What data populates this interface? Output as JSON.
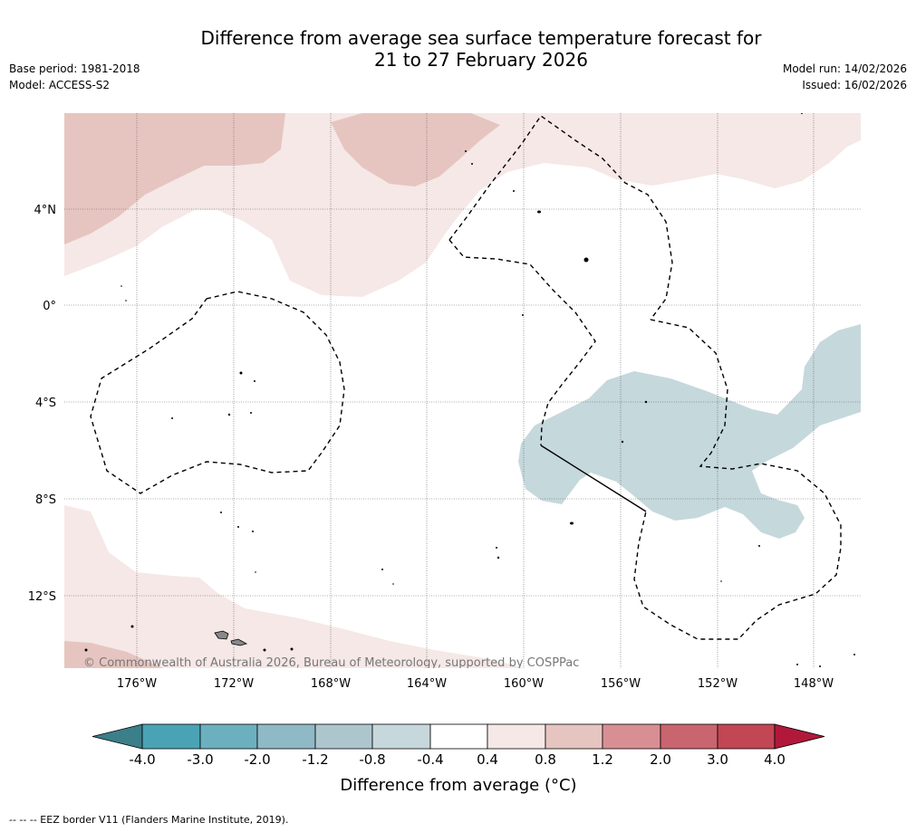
{
  "header": {
    "title_line1": "Difference from average sea surface temperature forecast for",
    "title_line2": "21 to 27 February 2026",
    "base_period": "Base period: 1981-2018",
    "model": "Model: ACCESS-S2",
    "model_run": "Model run: 14/02/2026",
    "issued": "Issued: 16/02/2026"
  },
  "map": {
    "lat_labels": [
      "4°N",
      "0°",
      "4°S",
      "8°S",
      "12°S"
    ],
    "lon_labels": [
      "176°W",
      "172°W",
      "168°W",
      "164°W",
      "160°W",
      "156°W",
      "152°W",
      "148°W"
    ],
    "copyright": "© Commonwealth of Australia 2026, Bureau of Meteorology, supported by COSPPac",
    "colors": {
      "warm_light": "#f5e8e6",
      "warm_mid": "#e6c5c0",
      "cool_light": "#c5d8dc",
      "coast": "#000000"
    }
  },
  "colorbar": {
    "ticks": [
      "-4.0",
      "-3.0",
      "-2.0",
      "-1.2",
      "-0.8",
      "-0.4",
      "0.4",
      "0.8",
      "1.2",
      "2.0",
      "3.0",
      "4.0"
    ],
    "colors": [
      "#3a7f8a",
      "#4aa3b5",
      "#6cb0bf",
      "#8fb9c5",
      "#adc6cd",
      "#c7d8dc",
      "#ffffff",
      "#f5e8e6",
      "#e6c5c0",
      "#d88f94",
      "#c9656f",
      "#c24654",
      "#b2183a"
    ],
    "label": "Difference from average (°C)"
  },
  "footnote": "-- -- -- EEZ border V11 (Flanders Marine Institute, 2019)."
}
